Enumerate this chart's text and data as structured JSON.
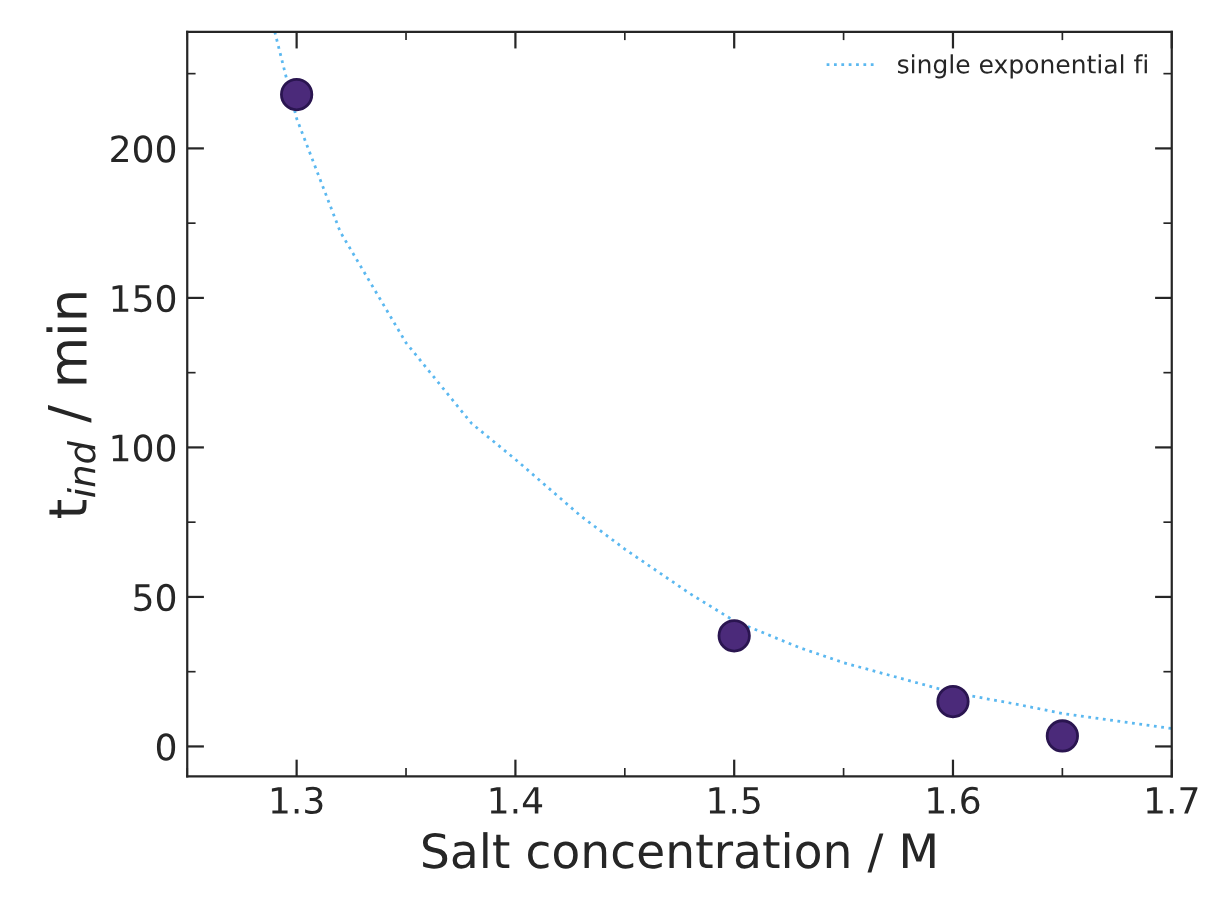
{
  "chart_data": {
    "type": "scatter",
    "xlabel": "Salt concentration / M",
    "ylabel": "t$_{ind}$ / min",
    "xlim": [
      1.25,
      1.7
    ],
    "ylim": [
      -10,
      239
    ],
    "xticks": [
      1.3,
      1.4,
      1.5,
      1.6,
      1.7
    ],
    "yticks": [
      0,
      50,
      100,
      150,
      200
    ],
    "grid": false,
    "legend": "top right",
    "marker": "circle",
    "series": [
      {
        "x": [
          1.3,
          1.5,
          1.6,
          1.65
        ],
        "values": [
          218,
          37,
          15,
          3.5
        ],
        "color": "#4b2a7a"
      },
      {
        "type": "line",
        "name": "single exponential fi",
        "line_style": "dotted",
        "color": "#5bb8f0",
        "marker": "none",
        "x": [
          1.29,
          1.3,
          1.32,
          1.35,
          1.38,
          1.4,
          1.43,
          1.45,
          1.48,
          1.5,
          1.53,
          1.55,
          1.58,
          1.6,
          1.63,
          1.65,
          1.68,
          1.7
        ],
        "values": [
          239,
          210,
          172,
          135,
          108,
          96,
          77,
          66,
          51,
          42,
          33,
          28,
          22,
          18,
          14,
          11,
          8,
          6
        ]
      }
    ]
  }
}
